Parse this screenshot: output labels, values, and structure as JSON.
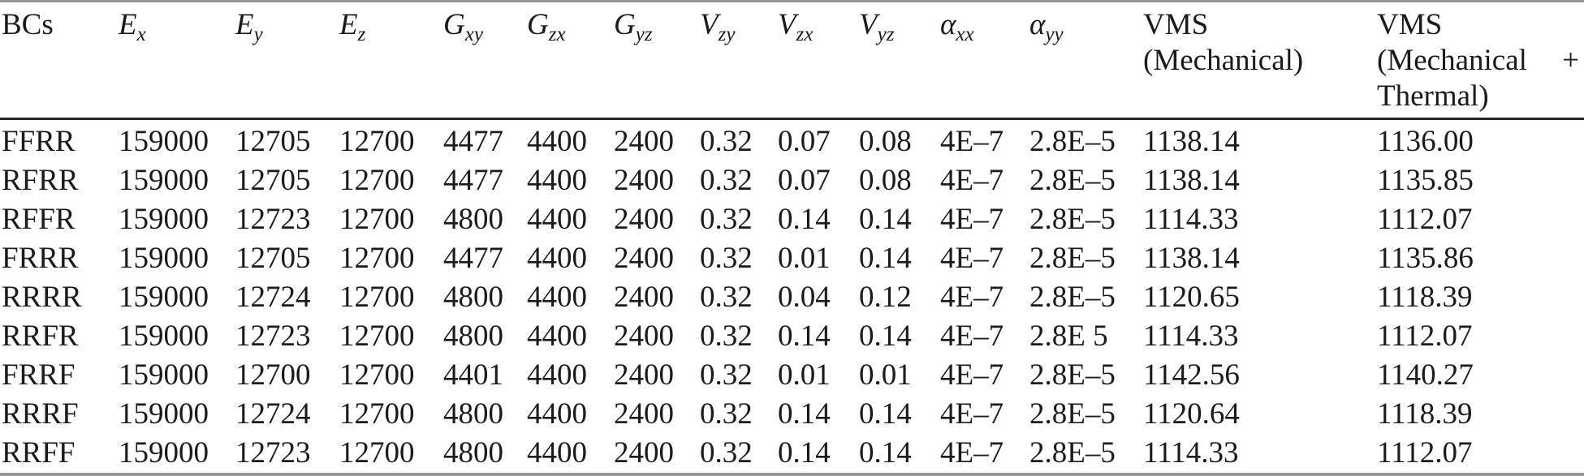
{
  "table": {
    "columns": [
      {
        "label": "BCs"
      },
      {
        "base": "E",
        "sub": "x"
      },
      {
        "base": "E",
        "sub": "y"
      },
      {
        "base": "E",
        "sub": "z"
      },
      {
        "base": "G",
        "sub": "xy"
      },
      {
        "base": "G",
        "sub": "zx"
      },
      {
        "base": "G",
        "sub": "yz"
      },
      {
        "base": "V",
        "sub": "zy"
      },
      {
        "base": "V",
        "sub": "zx"
      },
      {
        "base": "V",
        "sub": "yz"
      },
      {
        "base": "α",
        "sub": "xx"
      },
      {
        "base": "α",
        "sub": "yy"
      },
      {
        "line1": "VMS",
        "line2": "(Mechanical)"
      },
      {
        "line1": "VMS",
        "line2_left": "(Mechanical",
        "line2_right": "+",
        "line3": "Thermal)"
      }
    ],
    "rows": [
      {
        "bc": "FFRR",
        "values": [
          "159000",
          "12705",
          "12700",
          "4477",
          "4400",
          "2400",
          "0.32",
          "0.07",
          "0.08",
          "4E–7",
          "2.8E–5",
          "1138.14",
          "1136.00"
        ]
      },
      {
        "bc": "RFRR",
        "values": [
          "159000",
          "12705",
          "12700",
          "4477",
          "4400",
          "2400",
          "0.32",
          "0.07",
          "0.08",
          "4E–7",
          "2.8E–5",
          "1138.14",
          "1135.85"
        ]
      },
      {
        "bc": "RFFR",
        "values": [
          "159000",
          "12723",
          "12700",
          "4800",
          "4400",
          "2400",
          "0.32",
          "0.14",
          "0.14",
          "4E–7",
          "2.8E–5",
          "1114.33",
          "1112.07"
        ]
      },
      {
        "bc": "FRRR",
        "values": [
          "159000",
          "12705",
          "12700",
          "4477",
          "4400",
          "2400",
          "0.32",
          "0.01",
          "0.14",
          "4E–7",
          "2.8E–5",
          "1138.14",
          "1135.86"
        ]
      },
      {
        "bc": "RRRR",
        "values": [
          "159000",
          "12724",
          "12700",
          "4800",
          "4400",
          "2400",
          "0.32",
          "0.04",
          "0.12",
          "4E–7",
          "2.8E–5",
          "1120.65",
          "1118.39"
        ]
      },
      {
        "bc": "RRFR",
        "values": [
          "159000",
          "12723",
          "12700",
          "4800",
          "4400",
          "2400",
          "0.32",
          "0.14",
          "0.14",
          "4E–7",
          "2.8E 5",
          "1114.33",
          "1112.07"
        ]
      },
      {
        "bc": "FRRF",
        "values": [
          "159000",
          "12700",
          "12700",
          "4401",
          "4400",
          "2400",
          "0.32",
          "0.01",
          "0.01",
          "4E–7",
          "2.8E–5",
          "1142.56",
          "1140.27"
        ]
      },
      {
        "bc": "RRRF",
        "values": [
          "159000",
          "12724",
          "12700",
          "4800",
          "4400",
          "2400",
          "0.32",
          "0.14",
          "0.14",
          "4E–7",
          "2.8E–5",
          "1120.64",
          "1118.39"
        ]
      },
      {
        "bc": "RRFF",
        "values": [
          "159000",
          "12723",
          "12700",
          "4800",
          "4400",
          "2400",
          "0.32",
          "0.14",
          "0.14",
          "4E–7",
          "2.8E–5",
          "1114.33",
          "1112.07"
        ]
      }
    ]
  },
  "colors": {
    "text": "#1b1b1b",
    "outer_rule": "#969696",
    "header_rule": "#262626",
    "background": "#ffffff"
  }
}
